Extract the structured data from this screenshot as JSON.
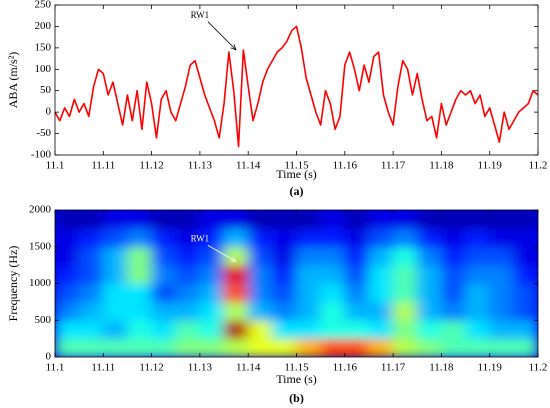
{
  "chart_data": [
    {
      "type": "line",
      "caption": "(a)",
      "xlabel": "Time (s)",
      "ylabel": "ABA (m/s²)",
      "xlim": [
        11.1,
        11.2
      ],
      "xticks": [
        11.1,
        11.11,
        11.12,
        11.13,
        11.14,
        11.15,
        11.16,
        11.17,
        11.18,
        11.19,
        11.2
      ],
      "ylim": [
        -100,
        250
      ],
      "yticks": [
        -100,
        -50,
        0,
        50,
        100,
        150,
        200,
        250
      ],
      "annotation": {
        "text": "RW1",
        "x": 11.13,
        "y": 225,
        "target_x": 11.1375,
        "target_y": 145
      },
      "series": [
        {
          "color": "#ff0000",
          "x": [
            11.1,
            11.101,
            11.102,
            11.103,
            11.104,
            11.105,
            11.106,
            11.107,
            11.108,
            11.109,
            11.11,
            11.111,
            11.112,
            11.113,
            11.114,
            11.115,
            11.116,
            11.117,
            11.118,
            11.119,
            11.12,
            11.121,
            11.122,
            11.123,
            11.124,
            11.125,
            11.126,
            11.127,
            11.128,
            11.129,
            11.13,
            11.131,
            11.132,
            11.133,
            11.134,
            11.135,
            11.136,
            11.137,
            11.138,
            11.139,
            11.14,
            11.141,
            11.142,
            11.143,
            11.144,
            11.145,
            11.146,
            11.147,
            11.148,
            11.149,
            11.15,
            11.151,
            11.152,
            11.153,
            11.154,
            11.155,
            11.156,
            11.157,
            11.158,
            11.159,
            11.16,
            11.161,
            11.162,
            11.163,
            11.164,
            11.165,
            11.166,
            11.167,
            11.168,
            11.169,
            11.17,
            11.171,
            11.172,
            11.173,
            11.174,
            11.175,
            11.176,
            11.177,
            11.178,
            11.179,
            11.18,
            11.181,
            11.182,
            11.183,
            11.184,
            11.185,
            11.186,
            11.187,
            11.188,
            11.189,
            11.19,
            11.191,
            11.192,
            11.193,
            11.194,
            11.195,
            11.196,
            11.197,
            11.198,
            11.199,
            11.2
          ],
          "values": [
            0,
            -20,
            10,
            -10,
            30,
            0,
            20,
            -10,
            60,
            100,
            90,
            40,
            70,
            20,
            -30,
            40,
            -20,
            50,
            -40,
            70,
            20,
            -60,
            30,
            50,
            0,
            -20,
            20,
            60,
            110,
            120,
            80,
            40,
            10,
            -20,
            -60,
            20,
            140,
            50,
            -80,
            145,
            60,
            -20,
            20,
            70,
            100,
            120,
            140,
            150,
            165,
            190,
            200,
            150,
            80,
            40,
            0,
            -30,
            50,
            20,
            -40,
            -10,
            110,
            140,
            100,
            50,
            110,
            70,
            130,
            140,
            40,
            0,
            -30,
            60,
            120,
            100,
            40,
            90,
            30,
            -20,
            -10,
            -60,
            20,
            -30,
            0,
            30,
            50,
            40,
            50,
            20,
            40,
            -10,
            10,
            -30,
            -70,
            0,
            -40,
            -20,
            0,
            10,
            20,
            50,
            40
          ]
        }
      ]
    },
    {
      "type": "heatmap",
      "caption": "(b)",
      "xlabel": "Time (s)",
      "ylabel": "Frequency (Hz)",
      "xlim": [
        11.1,
        11.2
      ],
      "xticks": [
        11.1,
        11.11,
        11.12,
        11.13,
        11.14,
        11.15,
        11.16,
        11.17,
        11.18,
        11.19,
        11.2
      ],
      "ylim": [
        0,
        2000
      ],
      "yticks": [
        0,
        500,
        1000,
        1500,
        2000
      ],
      "colormap": "jet",
      "annotation": {
        "text": "RW1",
        "x": 11.13,
        "y": 1600,
        "target_x": 11.1375,
        "target_y": 1300
      },
      "xbins": [
        11.1,
        11.105,
        11.11,
        11.115,
        11.12,
        11.125,
        11.13,
        11.135,
        11.14,
        11.145,
        11.15,
        11.155,
        11.16,
        11.165,
        11.17,
        11.175,
        11.18,
        11.185,
        11.19,
        11.195,
        11.2
      ],
      "ybins": [
        0,
        250,
        500,
        750,
        1000,
        1250,
        1500,
        1750,
        2000
      ],
      "z": [
        [
          0.45,
          0.45,
          0.45,
          0.45,
          0.45,
          0.5,
          0.5,
          0.55,
          0.6,
          0.6,
          0.7,
          0.8,
          0.8,
          0.7,
          0.55,
          0.5,
          0.45,
          0.45,
          0.45,
          0.45
        ],
        [
          0.35,
          0.35,
          0.3,
          0.4,
          0.35,
          0.45,
          0.4,
          0.95,
          0.6,
          0.35,
          0.35,
          0.4,
          0.4,
          0.35,
          0.5,
          0.4,
          0.45,
          0.35,
          0.3,
          0.3
        ],
        [
          0.25,
          0.3,
          0.35,
          0.35,
          0.3,
          0.3,
          0.35,
          0.55,
          0.3,
          0.25,
          0.3,
          0.4,
          0.3,
          0.3,
          0.55,
          0.3,
          0.25,
          0.3,
          0.25,
          0.2
        ],
        [
          0.2,
          0.25,
          0.35,
          0.35,
          0.2,
          0.25,
          0.3,
          0.8,
          0.25,
          0.2,
          0.3,
          0.35,
          0.25,
          0.35,
          0.45,
          0.3,
          0.2,
          0.3,
          0.25,
          0.2
        ],
        [
          0.15,
          0.2,
          0.3,
          0.5,
          0.25,
          0.2,
          0.25,
          0.9,
          0.25,
          0.15,
          0.3,
          0.3,
          0.2,
          0.35,
          0.45,
          0.3,
          0.2,
          0.25,
          0.25,
          0.15
        ],
        [
          0.1,
          0.2,
          0.3,
          0.5,
          0.2,
          0.15,
          0.2,
          0.55,
          0.2,
          0.1,
          0.25,
          0.25,
          0.15,
          0.3,
          0.4,
          0.25,
          0.15,
          0.2,
          0.2,
          0.1
        ],
        [
          0.1,
          0.15,
          0.2,
          0.25,
          0.15,
          0.1,
          0.15,
          0.3,
          0.15,
          0.1,
          0.15,
          0.15,
          0.1,
          0.2,
          0.25,
          0.15,
          0.1,
          0.15,
          0.1,
          0.1
        ],
        [
          0.05,
          0.05,
          0.1,
          0.1,
          0.05,
          0.05,
          0.1,
          0.1,
          0.05,
          0.05,
          0.05,
          0.1,
          0.05,
          0.1,
          0.1,
          0.05,
          0.05,
          0.05,
          0.05,
          0.05
        ]
      ]
    }
  ]
}
